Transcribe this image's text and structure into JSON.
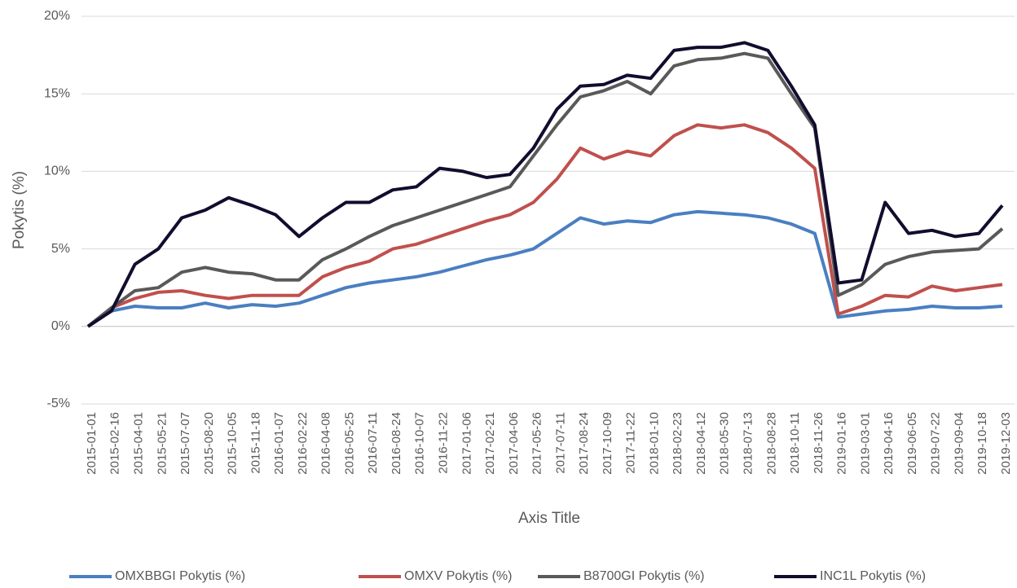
{
  "chart_data": {
    "type": "line",
    "x_title": "Axis Title",
    "y_title": "Pokytis (%)",
    "categories": [
      "2015-01-01",
      "2015-02-16",
      "2015-04-01",
      "2015-05-21",
      "2015-07-07",
      "2015-08-20",
      "2015-10-05",
      "2015-11-18",
      "2016-01-07",
      "2016-02-22",
      "2016-04-08",
      "2016-05-25",
      "2016-07-11",
      "2016-08-24",
      "2016-10-07",
      "2016-11-22",
      "2017-01-06",
      "2017-02-21",
      "2017-04-06",
      "2017-05-26",
      "2017-07-11",
      "2017-08-24",
      "2017-10-09",
      "2017-11-22",
      "2018-01-10",
      "2018-02-23",
      "2018-04-12",
      "2018-05-30",
      "2018-07-13",
      "2018-08-28",
      "2018-10-11",
      "2018-11-26",
      "2019-01-16",
      "2019-03-01",
      "2019-04-16",
      "2019-06-05",
      "2019-07-22",
      "2019-09-04",
      "2019-10-18",
      "2019-12-03"
    ],
    "series": [
      {
        "name": "OMXBBGI Pokytis (%)",
        "color": "#4a7fc1",
        "values": [
          0,
          1.0,
          1.3,
          1.2,
          1.2,
          1.5,
          1.2,
          1.4,
          1.3,
          1.5,
          2.0,
          2.5,
          2.8,
          3.0,
          3.2,
          3.5,
          3.9,
          4.3,
          4.6,
          5.0,
          6.0,
          7.0,
          6.6,
          6.8,
          6.7,
          7.2,
          7.4,
          7.3,
          7.2,
          7.0,
          6.6,
          6.0,
          0.6,
          0.8,
          1.0,
          1.1,
          1.3,
          1.2,
          1.2,
          1.3
        ]
      },
      {
        "name": "OMXV Pokytis (%)",
        "color": "#c0504d",
        "values": [
          0,
          1.2,
          1.8,
          2.2,
          2.3,
          2.0,
          1.8,
          2.0,
          2.0,
          2.0,
          3.2,
          3.8,
          4.2,
          5.0,
          5.3,
          5.8,
          6.3,
          6.8,
          7.2,
          8.0,
          9.5,
          11.5,
          10.8,
          11.3,
          11.0,
          12.3,
          13.0,
          12.8,
          13.0,
          12.5,
          11.5,
          10.2,
          0.8,
          1.3,
          2.0,
          1.9,
          2.6,
          2.3,
          2.5,
          2.7
        ]
      },
      {
        "name": "B8700GI Pokytis (%)",
        "color": "#595959",
        "values": [
          0,
          1.2,
          2.3,
          2.5,
          3.5,
          3.8,
          3.5,
          3.4,
          3.0,
          3.0,
          4.3,
          5.0,
          5.8,
          6.5,
          7.0,
          7.5,
          8.0,
          8.5,
          9.0,
          11.0,
          13.0,
          14.8,
          15.2,
          15.8,
          15.0,
          16.8,
          17.2,
          17.3,
          17.6,
          17.3,
          15.0,
          12.8,
          2.0,
          2.7,
          4.0,
          4.5,
          4.8,
          4.9,
          5.0,
          6.3
        ]
      },
      {
        "name": "INC1L Pokytis (%)",
        "color": "#100d2e",
        "values": [
          0,
          1.0,
          4.0,
          5.0,
          7.0,
          7.5,
          8.3,
          7.8,
          7.2,
          5.8,
          7.0,
          8.0,
          8.0,
          8.8,
          9.0,
          10.2,
          10.0,
          9.6,
          9.8,
          11.5,
          14.0,
          15.5,
          15.6,
          16.2,
          16.0,
          17.8,
          18.0,
          18.0,
          18.3,
          17.8,
          15.5,
          13.0,
          2.8,
          3.0,
          8.0,
          6.0,
          6.2,
          5.8,
          6.0,
          7.8
        ]
      }
    ],
    "ylim": [
      -5,
      20
    ],
    "yticks": [
      {
        "value": -5,
        "label": "-5%"
      },
      {
        "value": 0,
        "label": "0%"
      },
      {
        "value": 5,
        "label": "5%"
      },
      {
        "value": 10,
        "label": "10%"
      },
      {
        "value": 15,
        "label": "15%"
      },
      {
        "value": 20,
        "label": "20%"
      }
    ],
    "grid": true,
    "legend": "bottom"
  }
}
